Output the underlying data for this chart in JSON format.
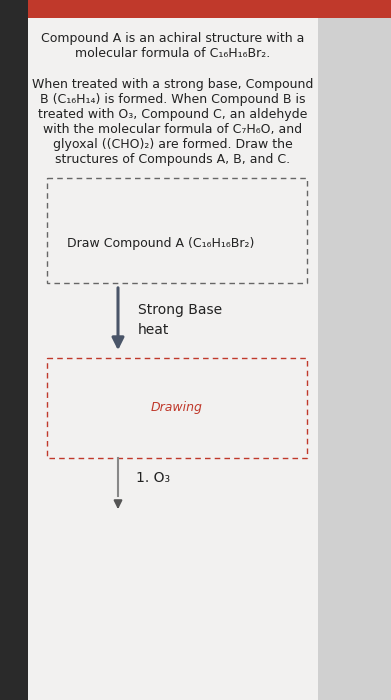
{
  "page_bg": "#e8e8e8",
  "header_bg": "#c0392b",
  "left_bar_color": "#2a2a2a",
  "right_bg_color": "#d8d8d8",
  "content_bg": "#f0efee",
  "title_line1": "Compound A is an achiral structure with a",
  "title_line2": "molecular formula of C₁₆H₁₆Br₂.",
  "body_lines": [
    "When treated with a strong base, Compound",
    "B (C₁₆H₁₄) is formed. When Compound B is",
    "treated with O₃, Compound C, an aldehyde",
    "with the molecular formula of C₇H₆O, and",
    "glyoxal ((CHO)₂) are formed. Draw the",
    "structures of Compounds A, B, and C."
  ],
  "box1_label": "Draw Compound A (C₁₆H₁₆Br₂)",
  "box1_border_color": "#666666",
  "arrow1_label1": "Strong Base",
  "arrow1_label2": "heat",
  "arrow_color": "#4a5568",
  "box2_label": "Drawing",
  "box2_border_color": "#c0392b",
  "box2_label_color": "#c0392b",
  "arrow2_label": "1. O₃",
  "text_color": "#222222",
  "font_size_title": 9.0,
  "font_size_body": 9.0,
  "font_size_box": 9.0,
  "font_size_arrow_label": 10.0,
  "font_size_arrow2_label": 10.0
}
